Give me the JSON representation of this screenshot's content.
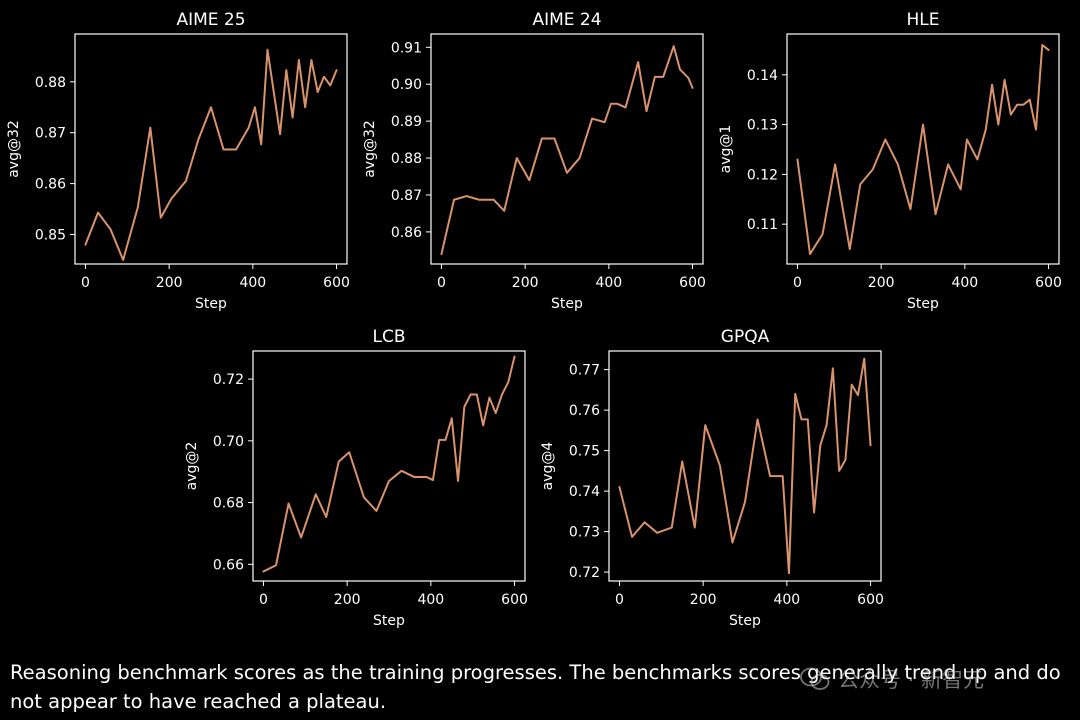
{
  "colors": {
    "background": "#000000",
    "line": "#d8936b",
    "axis": "#ffffff",
    "text": "#ffffff"
  },
  "chart_data": [
    {
      "type": "line",
      "title": "AIME 25",
      "xlabel": "Step",
      "ylabel": "avg@32",
      "xlim": [
        -25,
        625
      ],
      "ylim": [
        0.8442,
        0.8894
      ],
      "xticks": [
        0,
        200,
        400,
        600
      ],
      "yticks": [
        0.85,
        0.86,
        0.87,
        0.88
      ],
      "ytick_decimals": 2,
      "x": [
        0,
        30,
        60,
        90,
        125,
        155,
        180,
        205,
        240,
        270,
        300,
        330,
        360,
        390,
        405,
        420,
        435,
        465,
        480,
        495,
        510,
        525,
        540,
        555,
        570,
        585,
        600
      ],
      "values": [
        0.848,
        0.8543,
        0.851,
        0.845,
        0.8553,
        0.871,
        0.8533,
        0.857,
        0.8605,
        0.8687,
        0.875,
        0.8667,
        0.8667,
        0.871,
        0.875,
        0.8677,
        0.8863,
        0.8697,
        0.8823,
        0.873,
        0.8843,
        0.875,
        0.8843,
        0.878,
        0.881,
        0.8793,
        0.8823
      ]
    },
    {
      "type": "line",
      "title": "AIME 24",
      "xlabel": "Step",
      "ylabel": "avg@32",
      "xlim": [
        -25,
        625
      ],
      "ylim": [
        0.8513,
        0.9136
      ],
      "xticks": [
        0,
        200,
        400,
        600
      ],
      "yticks": [
        0.86,
        0.87,
        0.88,
        0.89,
        0.9,
        0.91
      ],
      "ytick_decimals": 2,
      "x": [
        0,
        30,
        60,
        90,
        125,
        150,
        180,
        210,
        240,
        270,
        300,
        330,
        360,
        390,
        405,
        420,
        440,
        470,
        490,
        510,
        530,
        555,
        570,
        590,
        600
      ],
      "values": [
        0.854,
        0.8687,
        0.8697,
        0.8687,
        0.8687,
        0.8657,
        0.88,
        0.874,
        0.8853,
        0.8853,
        0.876,
        0.88,
        0.8907,
        0.8897,
        0.8947,
        0.8947,
        0.8937,
        0.906,
        0.8927,
        0.902,
        0.902,
        0.9103,
        0.904,
        0.9017,
        0.899
      ]
    },
    {
      "type": "line",
      "title": "HLE",
      "xlabel": "Step",
      "ylabel": "avg@1",
      "xlim": [
        -25,
        625
      ],
      "ylim": [
        0.102,
        0.1482
      ],
      "xticks": [
        0,
        200,
        400,
        600
      ],
      "yticks": [
        0.11,
        0.12,
        0.13,
        0.14
      ],
      "ytick_decimals": 2,
      "x": [
        0,
        30,
        60,
        90,
        125,
        150,
        180,
        210,
        240,
        270,
        300,
        330,
        360,
        390,
        405,
        430,
        450,
        465,
        480,
        495,
        510,
        525,
        540,
        555,
        570,
        585,
        600
      ],
      "values": [
        0.123,
        0.104,
        0.108,
        0.122,
        0.105,
        0.118,
        0.121,
        0.127,
        0.122,
        0.113,
        0.13,
        0.112,
        0.122,
        0.117,
        0.127,
        0.123,
        0.129,
        0.138,
        0.13,
        0.139,
        0.132,
        0.134,
        0.134,
        0.135,
        0.129,
        0.146,
        0.145
      ]
    },
    {
      "type": "line",
      "title": "LCB",
      "xlabel": "Step",
      "ylabel": "avg@2",
      "xlim": [
        -25,
        625
      ],
      "ylim": [
        0.6546,
        0.7291
      ],
      "xticks": [
        0,
        200,
        400,
        600
      ],
      "yticks": [
        0.66,
        0.68,
        0.7,
        0.72
      ],
      "ytick_decimals": 2,
      "x": [
        0,
        30,
        60,
        90,
        125,
        150,
        180,
        205,
        240,
        270,
        300,
        330,
        360,
        390,
        405,
        420,
        435,
        450,
        465,
        480,
        495,
        510,
        525,
        540,
        555,
        570,
        585,
        600
      ],
      "values": [
        0.6577,
        0.6597,
        0.6797,
        0.6687,
        0.6827,
        0.6753,
        0.6933,
        0.6963,
        0.6817,
        0.6773,
        0.687,
        0.6903,
        0.6883,
        0.6883,
        0.6873,
        0.7003,
        0.7003,
        0.7073,
        0.687,
        0.711,
        0.715,
        0.715,
        0.705,
        0.714,
        0.709,
        0.715,
        0.719,
        0.7273
      ]
    },
    {
      "type": "line",
      "title": "GPQA",
      "xlabel": "Step",
      "ylabel": "avg@4",
      "xlim": [
        -25,
        625
      ],
      "ylim": [
        0.7178,
        0.7746
      ],
      "xticks": [
        0,
        200,
        400,
        600
      ],
      "yticks": [
        0.72,
        0.73,
        0.74,
        0.75,
        0.76,
        0.77
      ],
      "ytick_decimals": 2,
      "x": [
        0,
        30,
        60,
        90,
        125,
        150,
        180,
        205,
        240,
        270,
        300,
        330,
        360,
        390,
        405,
        420,
        435,
        450,
        465,
        480,
        495,
        510,
        525,
        540,
        555,
        570,
        585,
        600
      ],
      "values": [
        0.741,
        0.7287,
        0.7323,
        0.7297,
        0.731,
        0.7473,
        0.731,
        0.7563,
        0.7463,
        0.7273,
        0.7373,
        0.7577,
        0.7437,
        0.7437,
        0.7197,
        0.764,
        0.7577,
        0.7577,
        0.7347,
        0.7513,
        0.7563,
        0.7703,
        0.745,
        0.7477,
        0.7663,
        0.7637,
        0.7727,
        0.7513
      ]
    }
  ],
  "caption": "Reasoning benchmark scores as the training progresses. The benchmarks scores generally trend up and do not appear to have reached a plateau.",
  "watermark": {
    "text": "公众号 · 新智元",
    "icon": "wechat-icon"
  }
}
